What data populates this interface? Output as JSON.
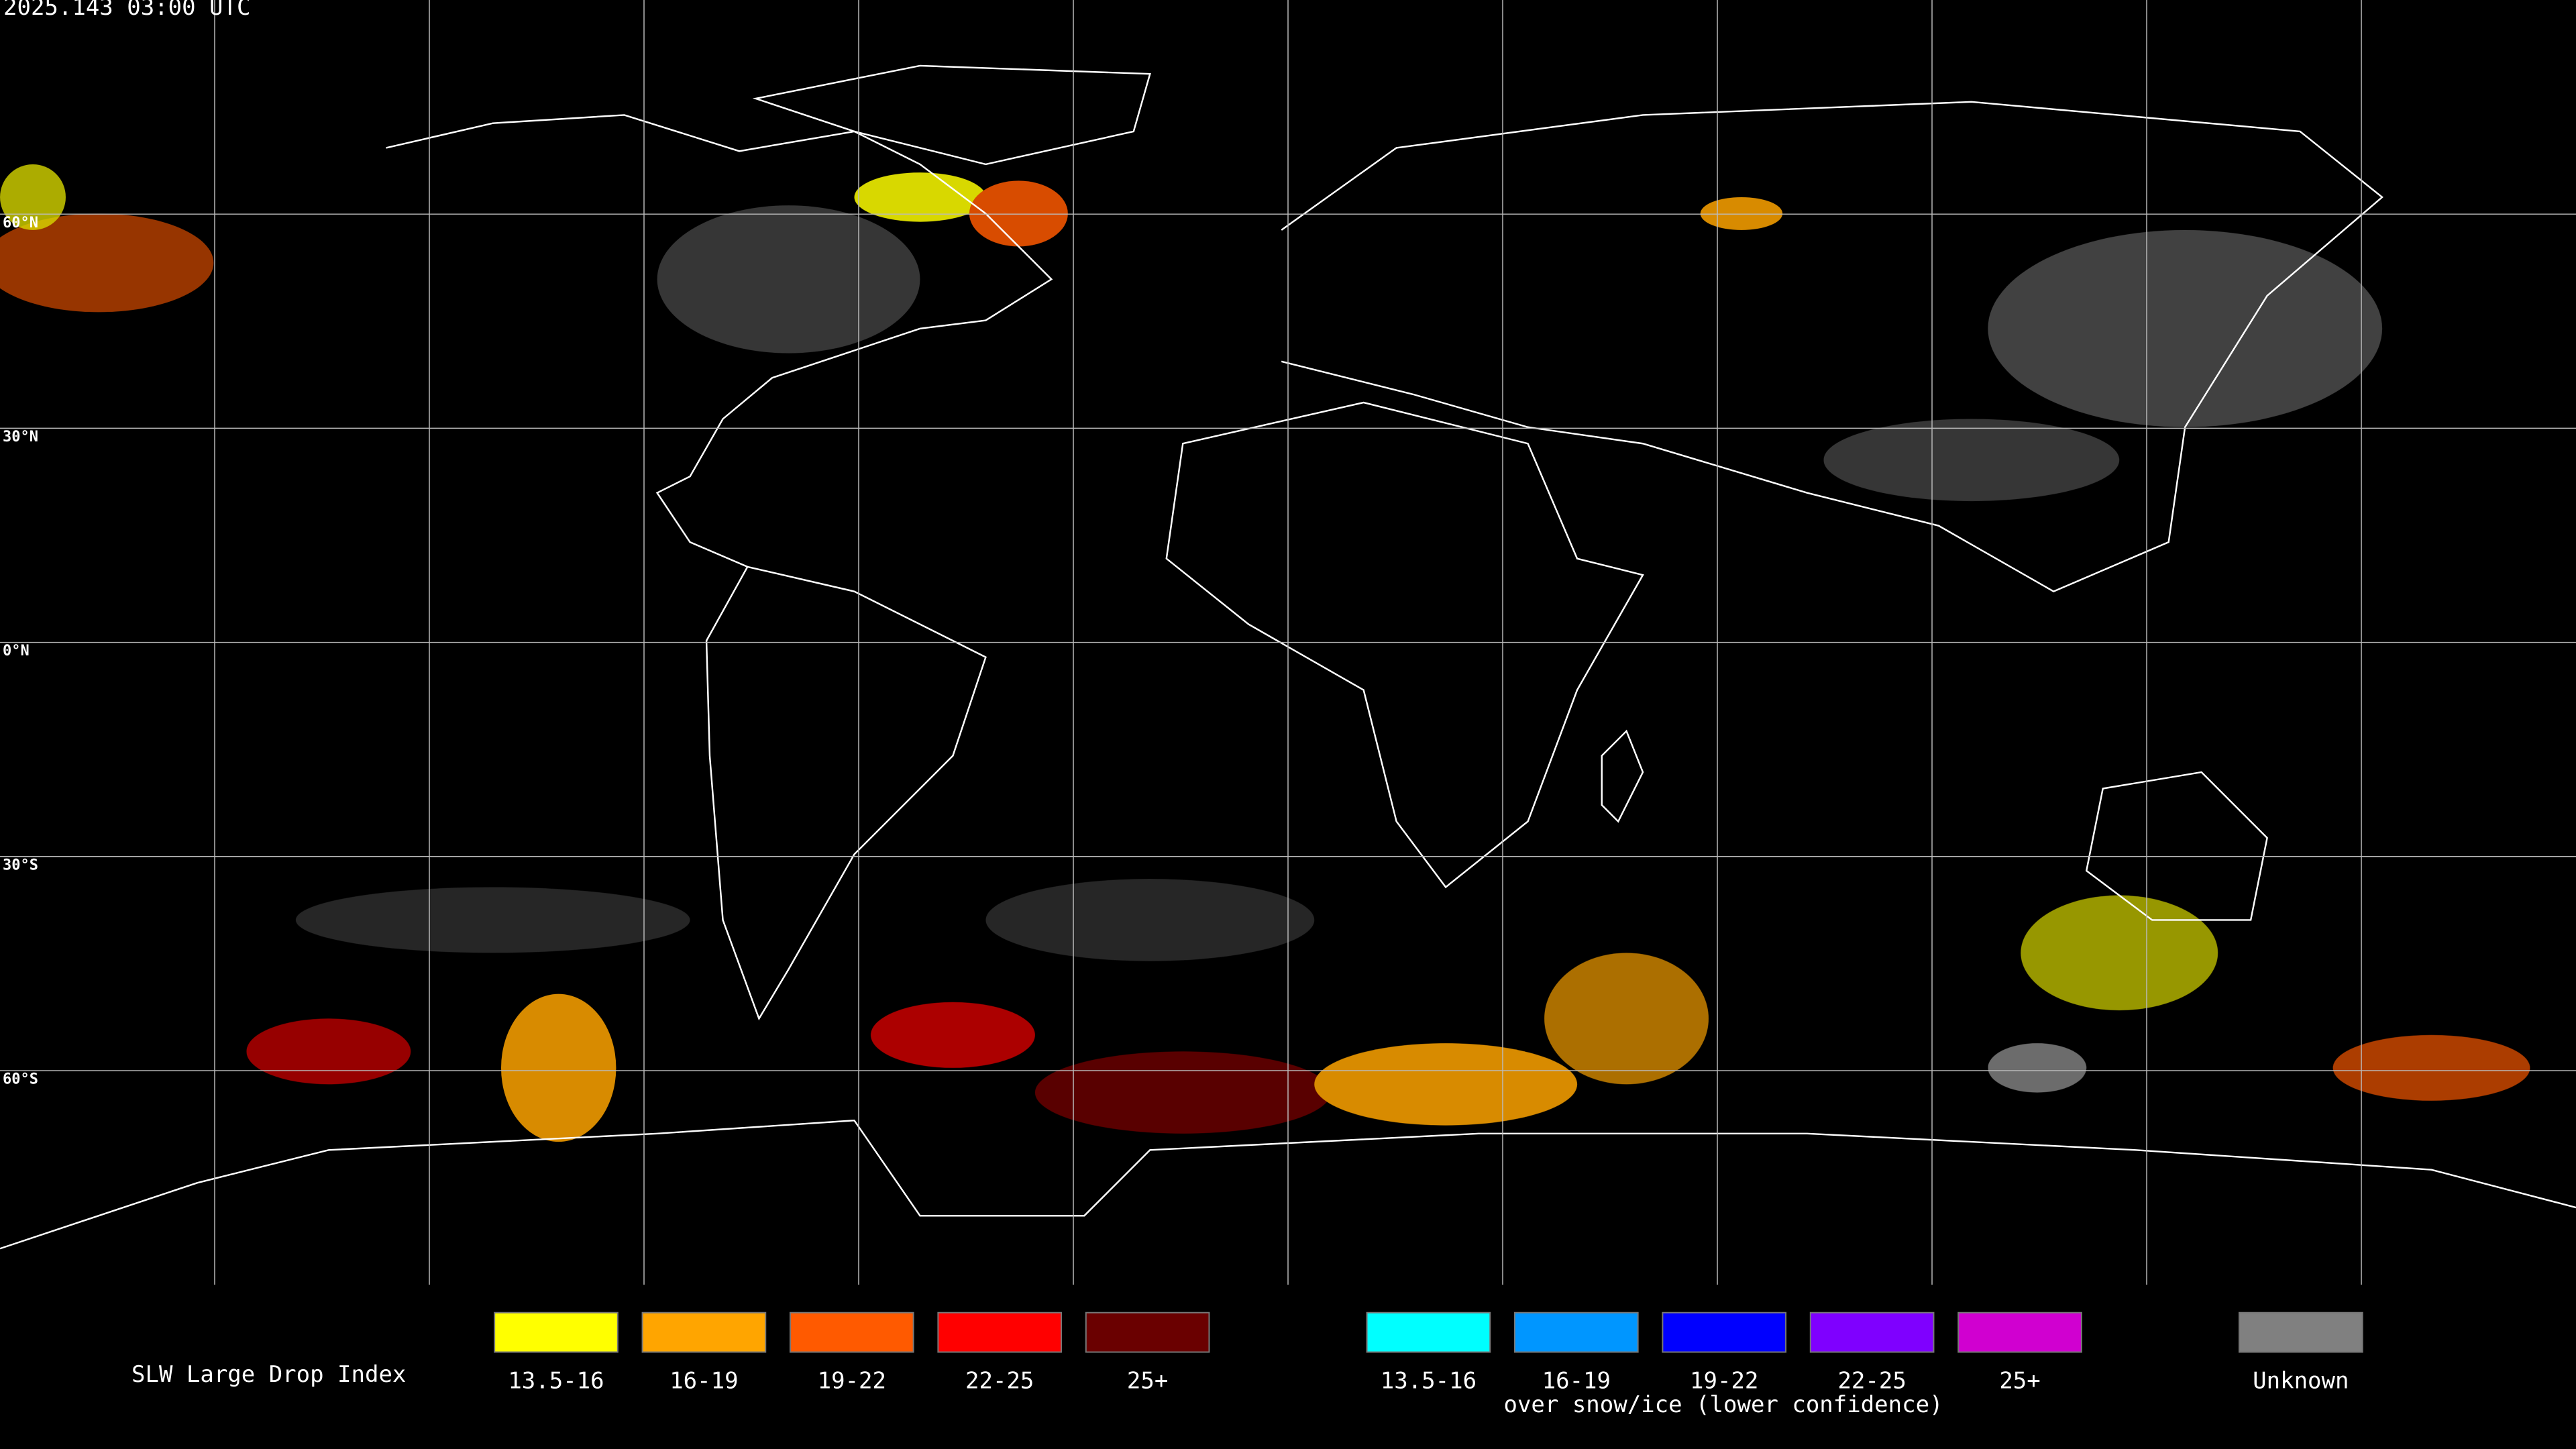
{
  "header": {
    "timestamp": "2025.143 03:00 UTC"
  },
  "map": {
    "latitude_labels": [
      "60°N",
      "30°N",
      "0°N",
      "30°S",
      "60°S"
    ]
  },
  "legend": {
    "title": "SLW Large Drop Index",
    "items": [
      {
        "label": "13.5-16",
        "color": "#ffff00"
      },
      {
        "label": "16-19",
        "color": "#ffa500"
      },
      {
        "label": "19-22",
        "color": "#ff5a00"
      },
      {
        "label": "22-25",
        "color": "#ff0000"
      },
      {
        "label": "25+",
        "color": "#6a0000"
      }
    ],
    "snow_items": [
      {
        "label": "13.5-16",
        "color": "#00ffff"
      },
      {
        "label": "16-19",
        "color": "#0096ff"
      },
      {
        "label": "19-22",
        "color": "#0000ff"
      },
      {
        "label": "22-25",
        "color": "#7f00ff"
      },
      {
        "label": "25+",
        "color": "#d000d0"
      }
    ],
    "snow_note": "over snow/ice (lower confidence)",
    "unknown": {
      "label": "Unknown",
      "color": "#808080"
    }
  }
}
